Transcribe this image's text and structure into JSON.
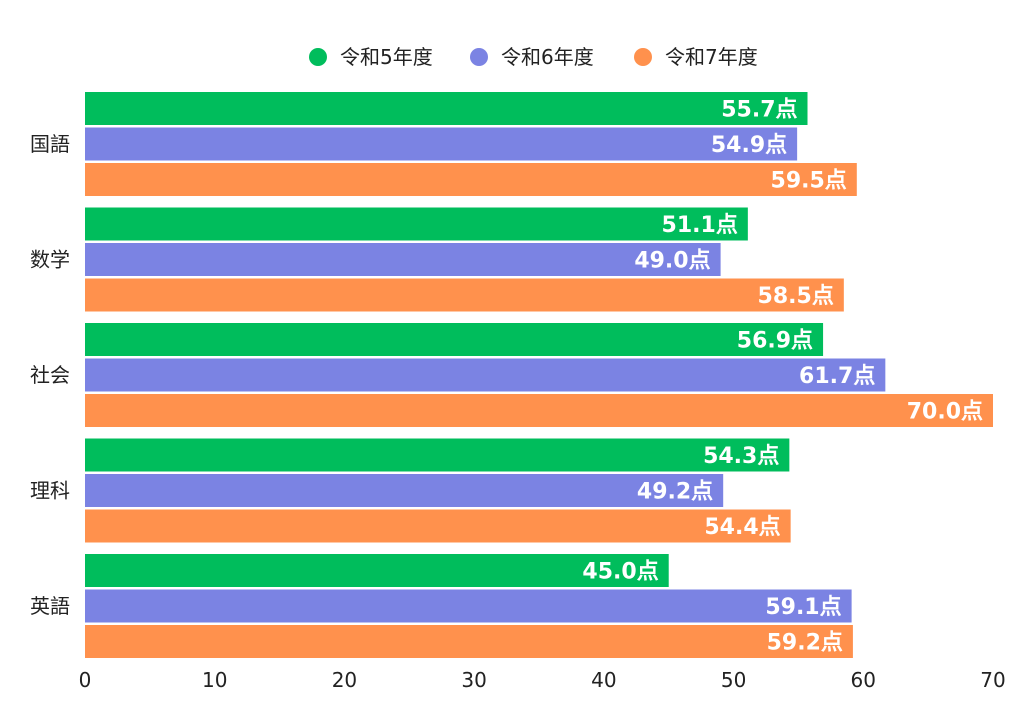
{
  "chart_data": {
    "type": "bar",
    "orientation": "horizontal",
    "title": "",
    "xlabel": "",
    "ylabel": "",
    "categories": [
      "国語",
      "数学",
      "社会",
      "理科",
      "英語"
    ],
    "series": [
      {
        "name": "令和5年度",
        "color": "#00bd5c",
        "values": [
          55.7,
          51.1,
          56.9,
          54.3,
          45.0
        ]
      },
      {
        "name": "令和6年度",
        "color": "#7b83e3",
        "values": [
          54.9,
          49.0,
          61.7,
          49.2,
          59.1
        ]
      },
      {
        "name": "令和7年度",
        "color": "#ff914d",
        "values": [
          59.5,
          58.5,
          70.0,
          54.4,
          59.2
        ]
      }
    ],
    "value_suffix": "点",
    "xlim": [
      0,
      70
    ],
    "xticks": [
      0,
      10,
      20,
      30,
      40,
      50,
      60,
      70
    ],
    "grid": false,
    "legend_position": "top-center",
    "data_labels": "inside-end"
  }
}
